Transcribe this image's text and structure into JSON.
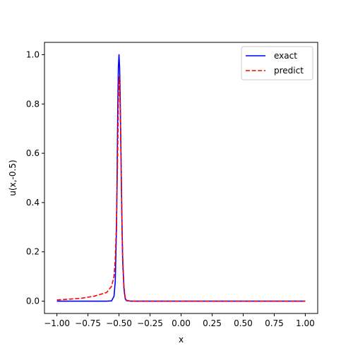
{
  "chart_data": {
    "type": "line",
    "title": "",
    "xlabel": "x",
    "ylabel": "u(x,-0.5)",
    "xlim": [
      -1.1,
      1.1
    ],
    "ylim": [
      -0.05,
      1.05
    ],
    "xticks": [
      -1.0,
      -0.75,
      -0.5,
      -0.25,
      0.0,
      0.25,
      0.5,
      0.75,
      1.0
    ],
    "xtick_labels": [
      "−1.00",
      "−0.75",
      "−0.50",
      "−0.25",
      "0.00",
      "0.25",
      "0.50",
      "0.75",
      "1.00"
    ],
    "yticks": [
      0.0,
      0.2,
      0.4,
      0.6,
      0.8,
      1.0
    ],
    "ytick_labels": [
      "0.0",
      "0.2",
      "0.4",
      "0.6",
      "0.8",
      "1.0"
    ],
    "grid": false,
    "legend_position": "top-right",
    "series": [
      {
        "name": "exact",
        "color": "#0000ff",
        "style": "solid",
        "x": [
          -1.0,
          -0.8,
          -0.6,
          -0.56,
          -0.54,
          -0.53,
          -0.52,
          -0.515,
          -0.51,
          -0.505,
          -0.5,
          -0.495,
          -0.49,
          -0.485,
          -0.48,
          -0.475,
          -0.47,
          -0.46,
          -0.45,
          -0.44,
          -0.4,
          -0.2,
          0.0,
          0.5,
          1.0
        ],
        "y": [
          0.0,
          0.0,
          0.0,
          0.001,
          0.02,
          0.08,
          0.3,
          0.52,
          0.78,
          0.95,
          1.0,
          0.95,
          0.82,
          0.64,
          0.45,
          0.28,
          0.16,
          0.05,
          0.01,
          0.002,
          0.0,
          0.0,
          0.0,
          0.0,
          0.0
        ]
      },
      {
        "name": "predict",
        "color": "#ff0000",
        "style": "dashed",
        "x": [
          -1.0,
          -0.9,
          -0.8,
          -0.7,
          -0.6,
          -0.56,
          -0.54,
          -0.53,
          -0.52,
          -0.51,
          -0.505,
          -0.5,
          -0.495,
          -0.49,
          -0.485,
          -0.48,
          -0.475,
          -0.47,
          -0.46,
          -0.45,
          -0.44,
          -0.42,
          -0.4,
          -0.2,
          0.0,
          0.5,
          1.0
        ],
        "y": [
          0.005,
          0.008,
          0.012,
          0.02,
          0.035,
          0.06,
          0.1,
          0.17,
          0.32,
          0.62,
          0.8,
          0.91,
          0.88,
          0.78,
          0.62,
          0.45,
          0.3,
          0.18,
          0.06,
          0.015,
          0.004,
          0.001,
          0.0,
          0.0,
          0.0,
          0.0,
          0.0
        ]
      }
    ]
  }
}
